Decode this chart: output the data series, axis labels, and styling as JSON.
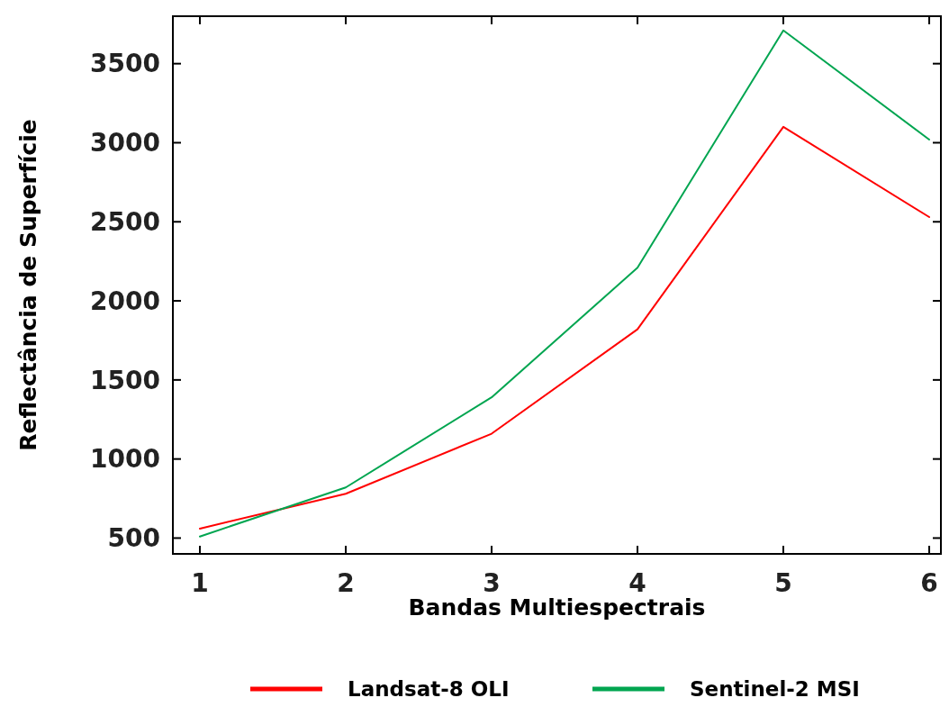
{
  "chart_data": {
    "type": "line",
    "xlabel": "Bandas Multiespectrais",
    "ylabel": "Reflectância de Superfície",
    "x": [
      1,
      2,
      3,
      4,
      5,
      6
    ],
    "series": [
      {
        "name": "Landsat-8 OLI",
        "color": "#ff0000",
        "values": [
          560,
          780,
          1160,
          1820,
          3100,
          2530
        ]
      },
      {
        "name": "Sentinel-2 MSI",
        "color": "#00a550",
        "values": [
          510,
          820,
          1390,
          2210,
          3710,
          3020
        ]
      }
    ],
    "xlim": [
      0.815,
      6.08
    ],
    "ylim": [
      400,
      3800
    ],
    "xticks": [
      1,
      2,
      3,
      4,
      5,
      6
    ],
    "yticks": [
      500,
      1000,
      1500,
      2000,
      2500,
      3000,
      3500
    ],
    "grid": false,
    "legend": "bottom",
    "line_style": "solid",
    "marker": "none"
  }
}
